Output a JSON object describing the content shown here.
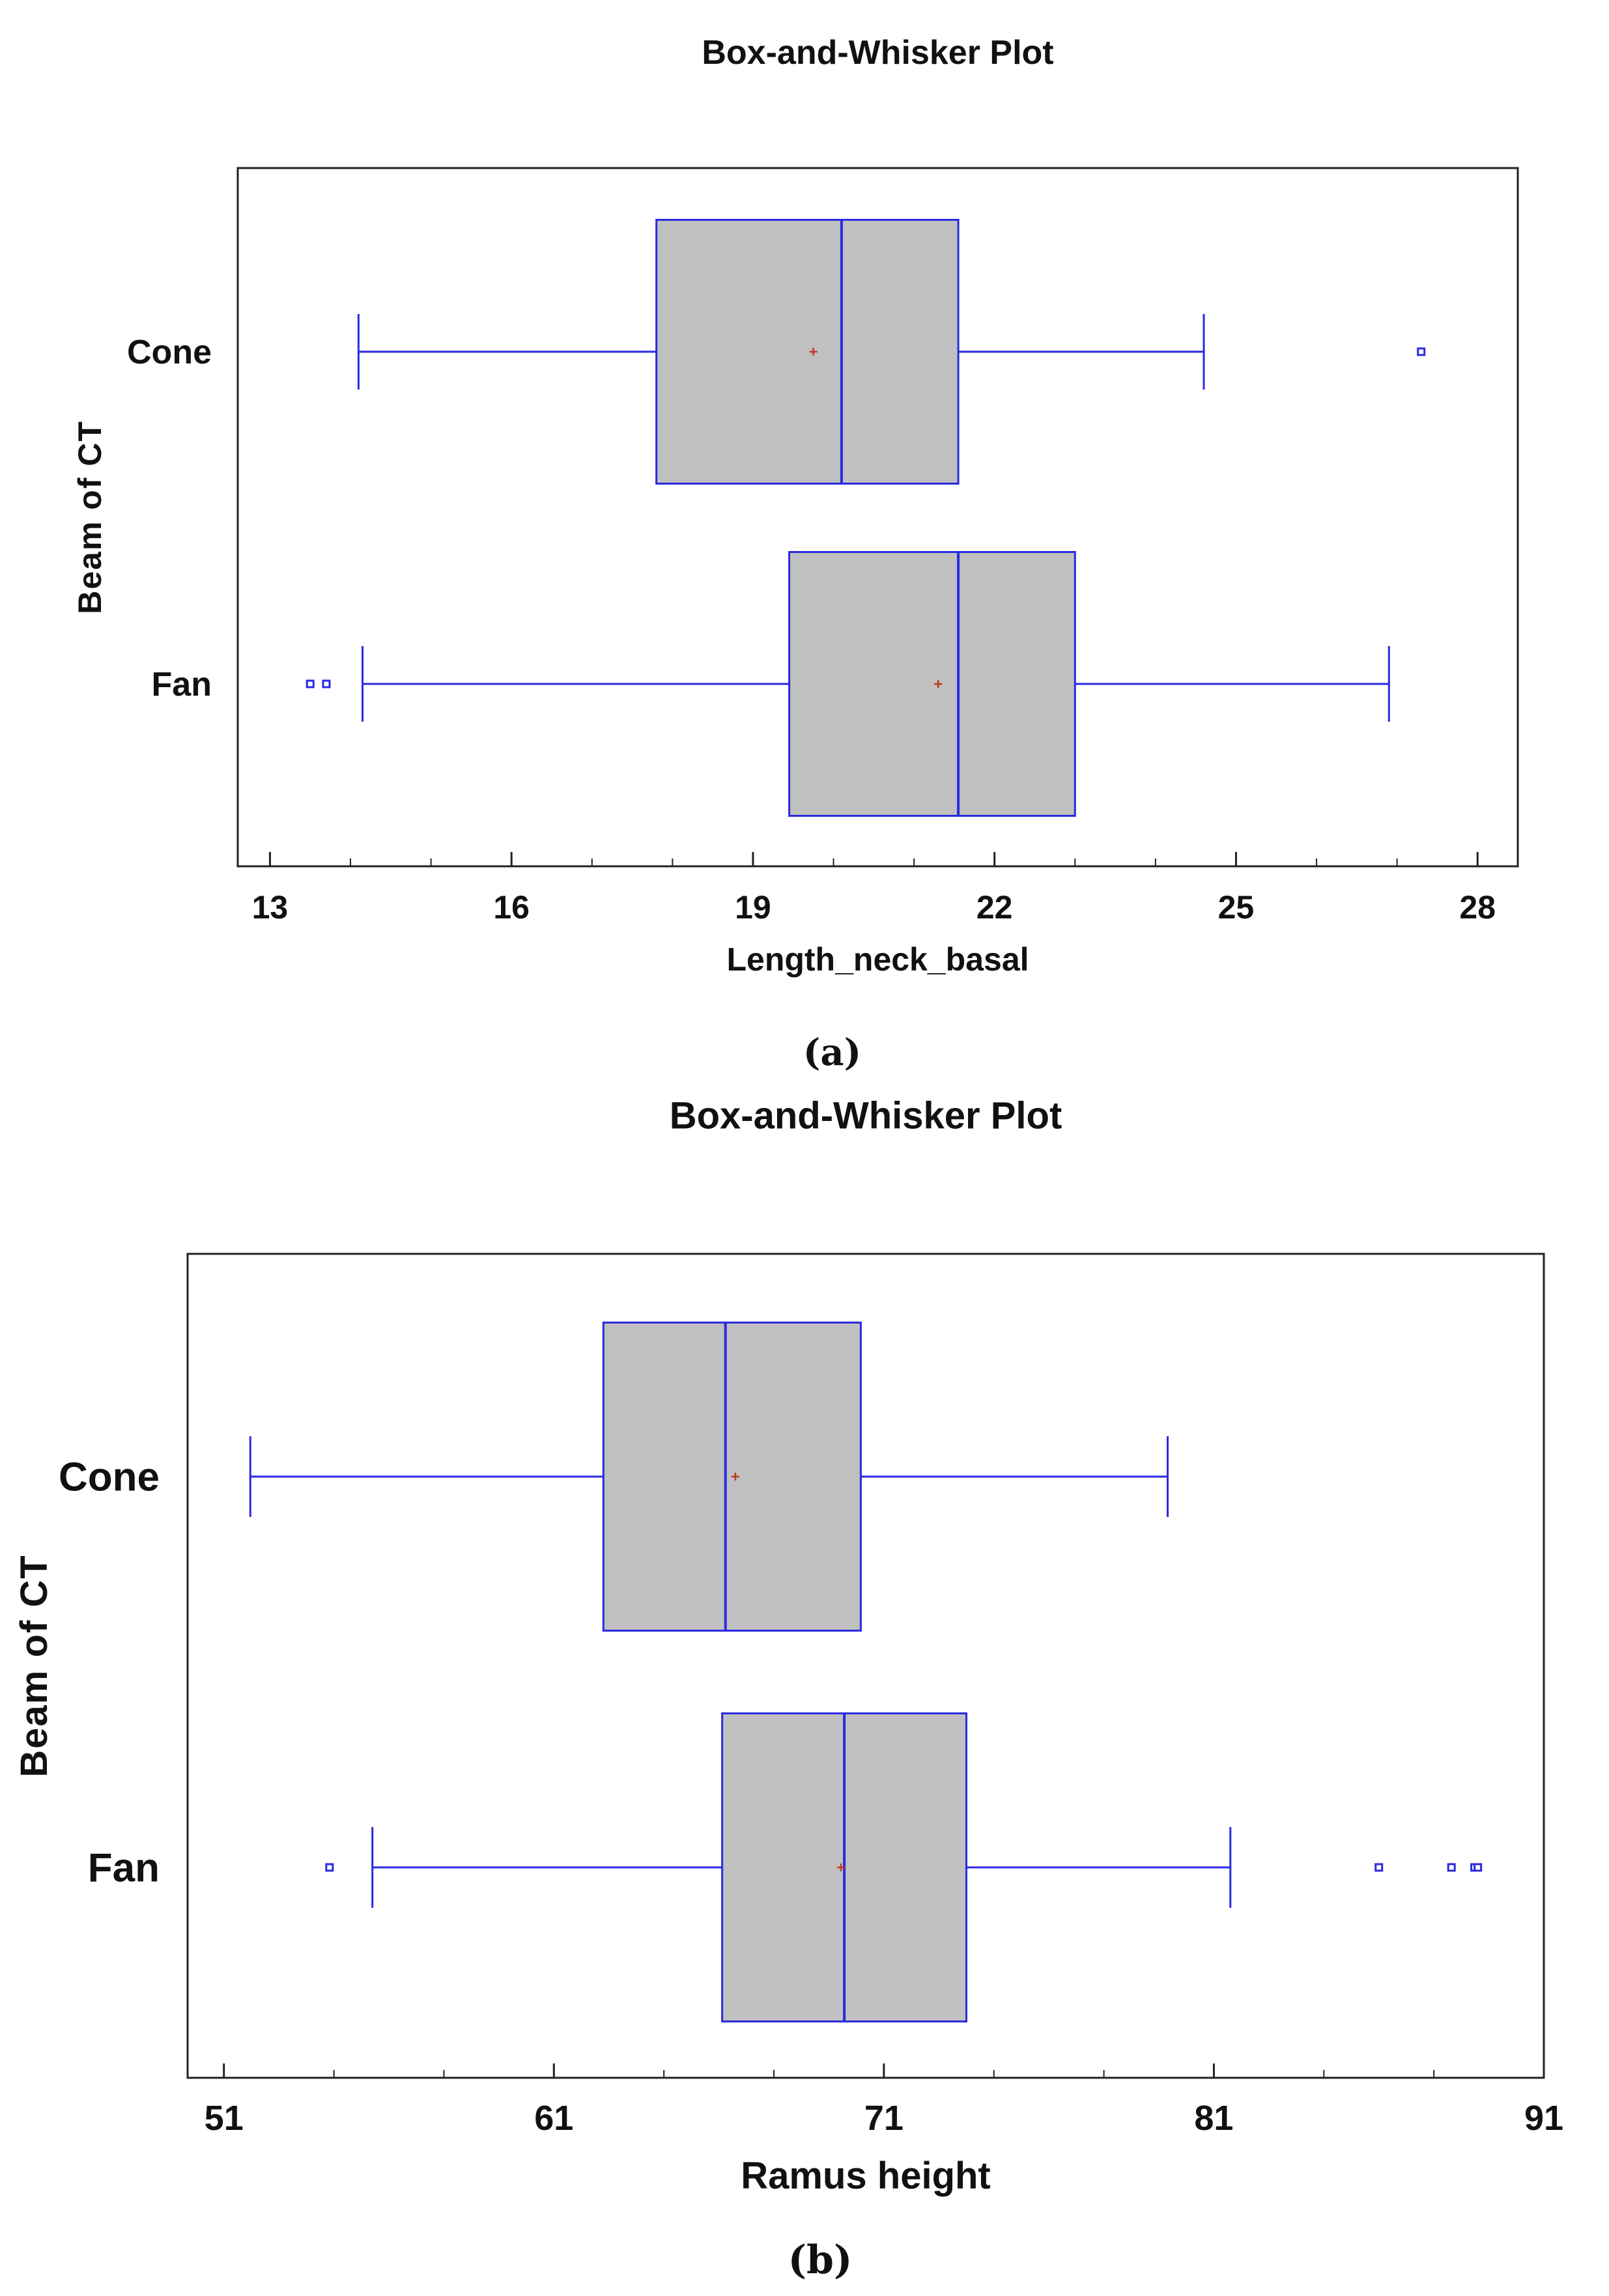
{
  "colors": {
    "box_fill": "#c0c0c0",
    "line": "#2a2ae0",
    "mean": "#c0391b",
    "frame": "#222222"
  },
  "chart_data": [
    {
      "type": "boxplot",
      "title": "Box-and-Whisker Plot",
      "xlabel": "Length_neck_basal",
      "ylabel": "Beam of CT",
      "caption": "(a)",
      "xlim": [
        12.6,
        28.5
      ],
      "xticks": [
        13,
        16,
        19,
        22,
        25,
        28
      ],
      "groups": [
        {
          "name": "Cone",
          "whisker_low": 14.1,
          "q1": 17.8,
          "median": 20.1,
          "q3": 21.55,
          "whisker_high": 24.6,
          "mean": 19.75,
          "outliers": [
            27.3
          ]
        },
        {
          "name": "Fan",
          "whisker_low": 14.15,
          "q1": 19.45,
          "median": 21.55,
          "q3": 23.0,
          "whisker_high": 26.9,
          "mean": 21.3,
          "outliers": [
            13.5,
            13.7
          ]
        }
      ]
    },
    {
      "type": "boxplot",
      "title": "Box-and-Whisker Plot",
      "xlabel": "Ramus height",
      "ylabel": "Beam of CT",
      "caption": "(b)",
      "xlim": [
        49.9,
        91.0
      ],
      "xticks": [
        51,
        61,
        71,
        81,
        91
      ],
      "groups": [
        {
          "name": "Cone",
          "whisker_low": 51.8,
          "q1": 62.5,
          "median": 66.2,
          "q3": 70.3,
          "whisker_high": 79.6,
          "mean": 66.5,
          "outliers": []
        },
        {
          "name": "Fan",
          "whisker_low": 55.5,
          "q1": 66.1,
          "median": 69.8,
          "q3": 73.5,
          "whisker_high": 81.5,
          "mean": 69.7,
          "outliers": [
            54.2,
            86.0,
            88.2,
            88.9,
            89.0
          ]
        }
      ]
    }
  ]
}
